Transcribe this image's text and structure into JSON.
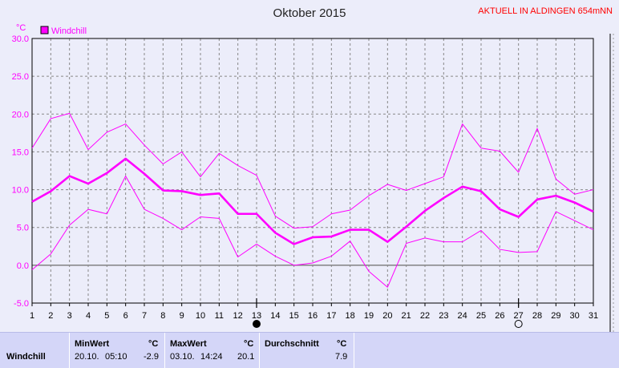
{
  "title": "Oktober 2015",
  "station": "AKTUELL IN ALDINGEN 654mNN",
  "legend": {
    "label": "Windchill",
    "color": "#ff00ff"
  },
  "y_unit": "°C",
  "colors": {
    "line": "#ff00ff",
    "grid": "#888888",
    "zero": "#777777",
    "plot_bg": "#ecedfa",
    "stats_bg": "#d4d6f8"
  },
  "moon_icons": [
    {
      "day": 13,
      "icon": "new-moon-icon"
    },
    {
      "day": 27,
      "icon": "full-moon-icon"
    }
  ],
  "chart_data": {
    "type": "line",
    "x": [
      1,
      2,
      3,
      4,
      5,
      6,
      7,
      8,
      9,
      10,
      11,
      12,
      13,
      14,
      15,
      16,
      17,
      18,
      19,
      20,
      21,
      22,
      23,
      24,
      25,
      26,
      27,
      28,
      29,
      30,
      31
    ],
    "xlim": [
      1,
      31
    ],
    "ylim": [
      -5,
      30
    ],
    "yticks": [
      -5.0,
      0.0,
      5.0,
      10.0,
      15.0,
      20.0,
      25.0,
      30.0
    ],
    "grid": true,
    "legend_position": "top-left",
    "series": [
      {
        "name": "Windchill",
        "role": "max",
        "values": [
          15.5,
          19.4,
          20.1,
          15.3,
          17.6,
          18.7,
          15.9,
          13.4,
          15.0,
          11.7,
          14.8,
          13.2,
          11.9,
          6.5,
          4.9,
          5.1,
          6.8,
          7.3,
          9.2,
          10.7,
          9.9,
          10.8,
          11.7,
          18.7,
          15.5,
          15.1,
          12.3,
          18.1,
          11.4,
          9.4,
          10.0
        ]
      },
      {
        "name": "Windchill",
        "role": "avg",
        "values": [
          8.4,
          9.8,
          11.8,
          10.8,
          12.2,
          14.1,
          12.1,
          9.9,
          9.8,
          9.3,
          9.5,
          6.8,
          6.8,
          4.3,
          2.8,
          3.7,
          3.8,
          4.7,
          4.7,
          3.1,
          5.1,
          7.2,
          8.9,
          10.4,
          9.8,
          7.4,
          6.4,
          8.7,
          9.2,
          8.3,
          7.1
        ]
      },
      {
        "name": "Windchill",
        "role": "min",
        "values": [
          -0.6,
          1.5,
          5.3,
          7.4,
          6.8,
          11.8,
          7.4,
          6.2,
          4.7,
          6.4,
          6.2,
          1.1,
          2.8,
          1.2,
          0.0,
          0.3,
          1.2,
          3.2,
          -0.8,
          -2.9,
          2.9,
          3.6,
          3.1,
          3.1,
          4.6,
          2.1,
          1.7,
          1.8,
          7.1,
          5.9,
          4.7
        ]
      }
    ]
  },
  "stats": {
    "row_label": "Windchill",
    "min_header": "MinWert",
    "min_unit": "°C",
    "min_date": "20.10.",
    "min_time": "05:10",
    "min_value": "-2.9",
    "max_header": "MaxWert",
    "max_unit": "°C",
    "max_date": "03.10.",
    "max_time": "14:24",
    "max_value": "20.1",
    "avg_header": "Durchschnitt",
    "avg_unit": "°C",
    "avg_value": "7.9"
  }
}
